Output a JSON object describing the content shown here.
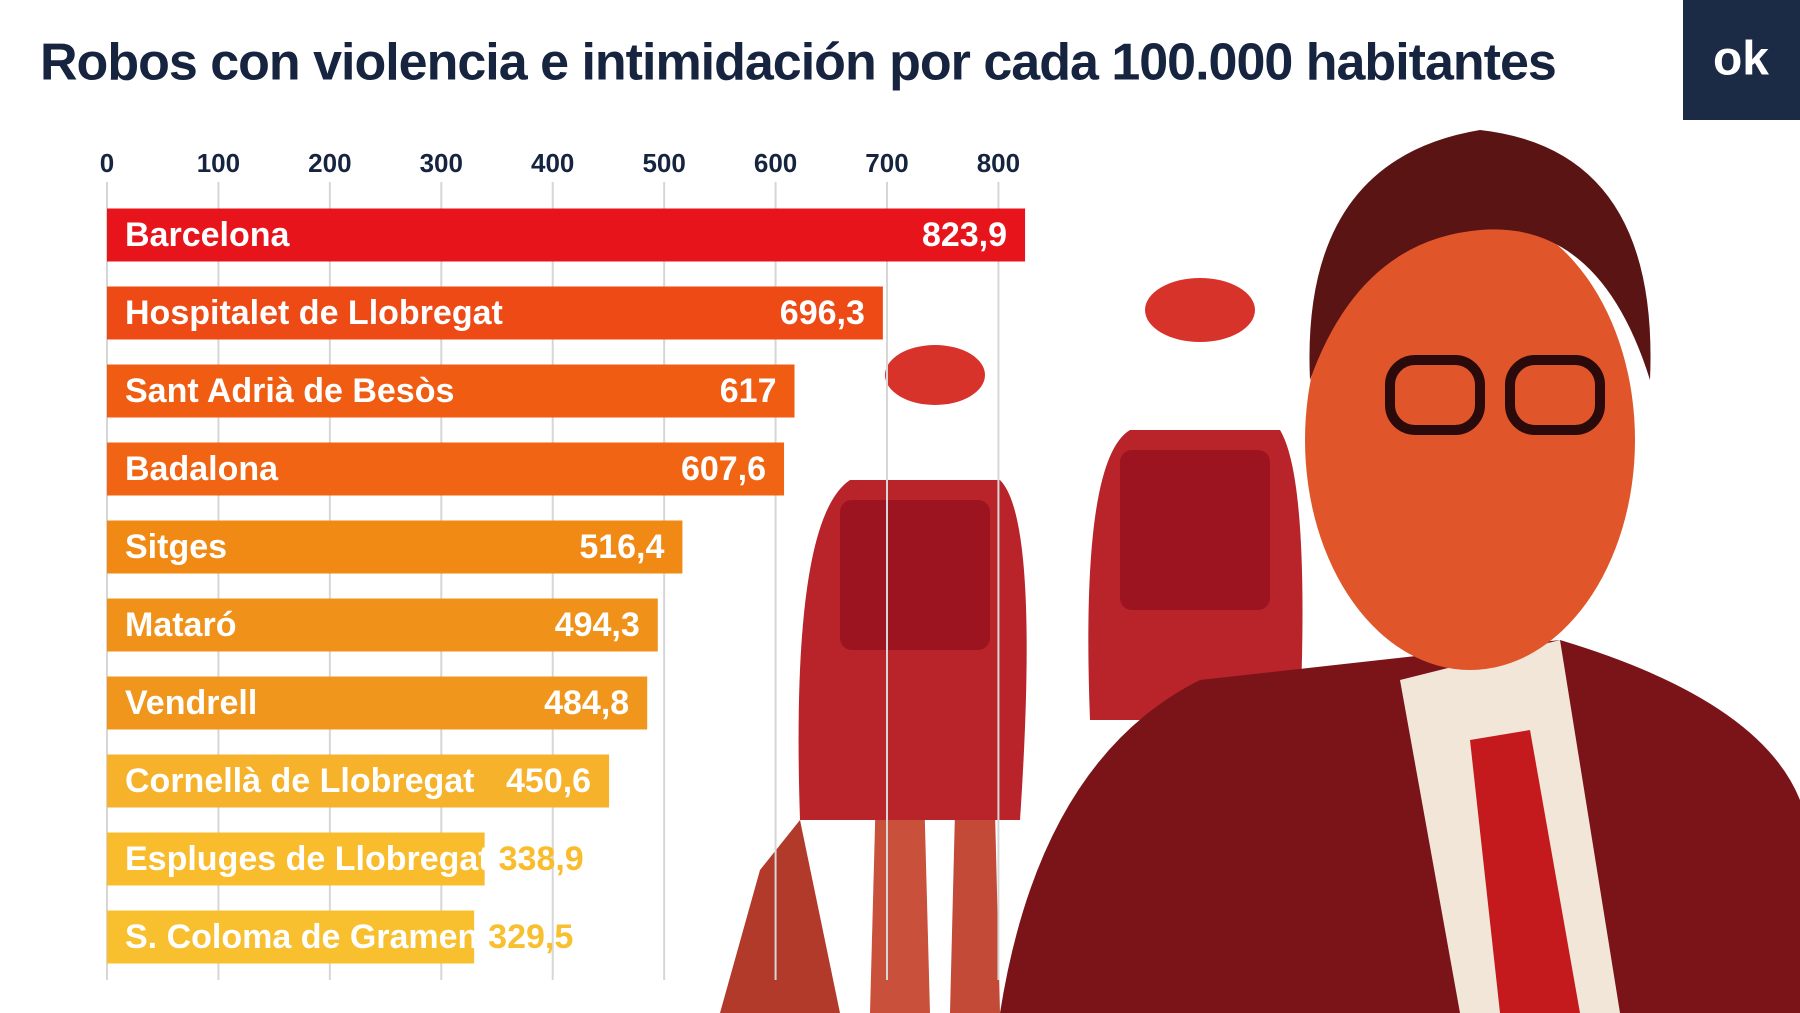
{
  "chart_data": {
    "type": "bar",
    "orientation": "horizontal",
    "title": "Robos con violencia e intimidación por cada 100.000 habitantes",
    "categories": [
      "Barcelona",
      "Hospitalet de Llobregat",
      "Sant Adrià de Besòs",
      "Badalona",
      "Sitges",
      "Mataró",
      "Vendrell",
      "Cornellà de Llobregat",
      "Espluges de Llobregat",
      "S. Coloma de Gramenet"
    ],
    "values": [
      823.9,
      696.3,
      617,
      607.6,
      516.4,
      494.3,
      484.8,
      450.6,
      338.9,
      329.5
    ],
    "value_labels": [
      "823,9",
      "696,3",
      "617",
      "607,6",
      "516,4",
      "494,3",
      "484,8",
      "450,6",
      "338,9",
      "329,5"
    ],
    "colors": [
      "#e8141c",
      "#ee4a16",
      "#f05c12",
      "#f06414",
      "#f08a14",
      "#f0921a",
      "#f0961c",
      "#f6b22a",
      "#f8bc2c",
      "#f8c02e"
    ],
    "xlim": [
      0,
      840
    ],
    "xticks": [
      0,
      100,
      200,
      300,
      400,
      500,
      600,
      700,
      800
    ],
    "grid": true
  },
  "logo": "ok"
}
